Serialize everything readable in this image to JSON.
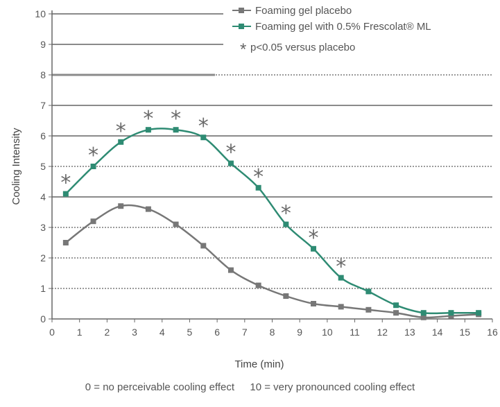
{
  "chart_data": {
    "type": "line",
    "title": "",
    "xlabel": "Time (min)",
    "ylabel": "Cooling Intensity",
    "xlim": [
      0,
      16
    ],
    "ylim": [
      0,
      10
    ],
    "x_ticks": [
      0,
      1,
      2,
      3,
      4,
      5,
      6,
      7,
      8,
      9,
      10,
      11,
      12,
      13,
      14,
      15,
      16
    ],
    "y_ticks": [
      0,
      1,
      2,
      3,
      4,
      5,
      6,
      7,
      8,
      9,
      10
    ],
    "grid": true,
    "legend_position": "top-right",
    "x": [
      0.5,
      1.5,
      2.5,
      3.5,
      4.5,
      5.5,
      6.5,
      7.5,
      8.5,
      9.5,
      10.5,
      11.5,
      12.5,
      13.5,
      14.5,
      15.5
    ],
    "series": [
      {
        "name": "Foaming gel placebo",
        "color": "#777777",
        "values": [
          2.5,
          3.2,
          3.7,
          3.6,
          3.1,
          2.4,
          1.6,
          1.1,
          0.75,
          0.5,
          0.4,
          0.3,
          0.2,
          0.05,
          0.1,
          0.15
        ]
      },
      {
        "name": "Foaming gel with 0.5% Frescolat® ML",
        "color": "#2e8b73",
        "values": [
          4.1,
          5.0,
          5.8,
          6.2,
          6.2,
          5.95,
          5.1,
          4.3,
          3.1,
          2.3,
          1.35,
          0.9,
          0.45,
          0.2,
          0.2,
          0.2
        ]
      }
    ],
    "significance_marker": "*",
    "significance_label": "p<0.05 versus placebo",
    "significant_x": [
      0.5,
      1.5,
      2.5,
      3.5,
      4.5,
      5.5,
      6.5,
      7.5,
      8.5,
      9.5,
      10.5
    ],
    "footnote_left": "0 = no perceivable cooling effect",
    "footnote_right": "10 = very pronounced cooling effect"
  }
}
